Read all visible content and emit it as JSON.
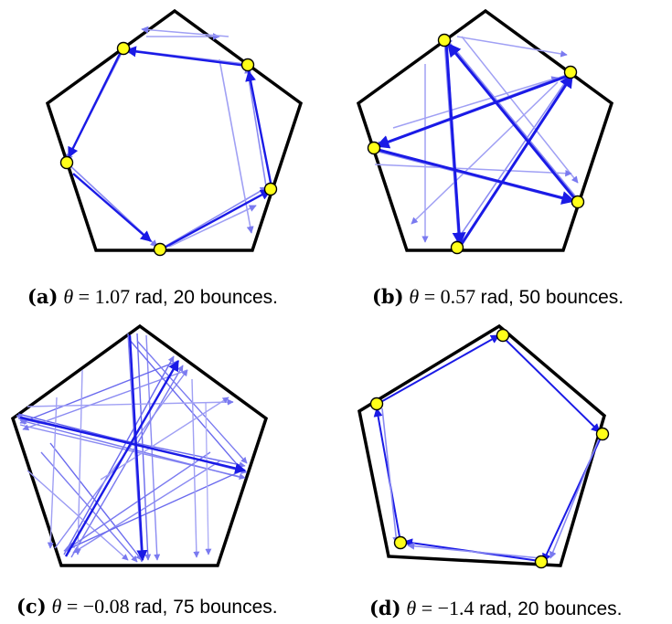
{
  "panels": [
    {
      "id": "a",
      "label": "(a)",
      "theta_symbol": "θ",
      "eq": "=",
      "theta_value": "1.07",
      "unit": "rad,",
      "bounce_text": "20 bounces.",
      "bounces": 20
    },
    {
      "id": "b",
      "label": "(b)",
      "theta_symbol": "θ",
      "eq": "=",
      "theta_value": "0.57",
      "unit": "rad,",
      "bounce_text": "50 bounces.",
      "bounces": 50
    },
    {
      "id": "c",
      "label": "(c)",
      "theta_symbol": "θ",
      "eq": "=",
      "theta_value": "−0.08",
      "unit": "rad,",
      "bounce_text": "75 bounces.",
      "bounces": 75
    },
    {
      "id": "d",
      "label": "(d)",
      "theta_symbol": "θ",
      "eq": "=",
      "theta_value": "−1.4",
      "unit": "rad,",
      "bounce_text": "20 bounces.",
      "bounces": 20
    }
  ],
  "colors": {
    "pentagon": "#000000",
    "trajectory": "#1a1ae6",
    "bounce_point": "#ffff1a"
  }
}
